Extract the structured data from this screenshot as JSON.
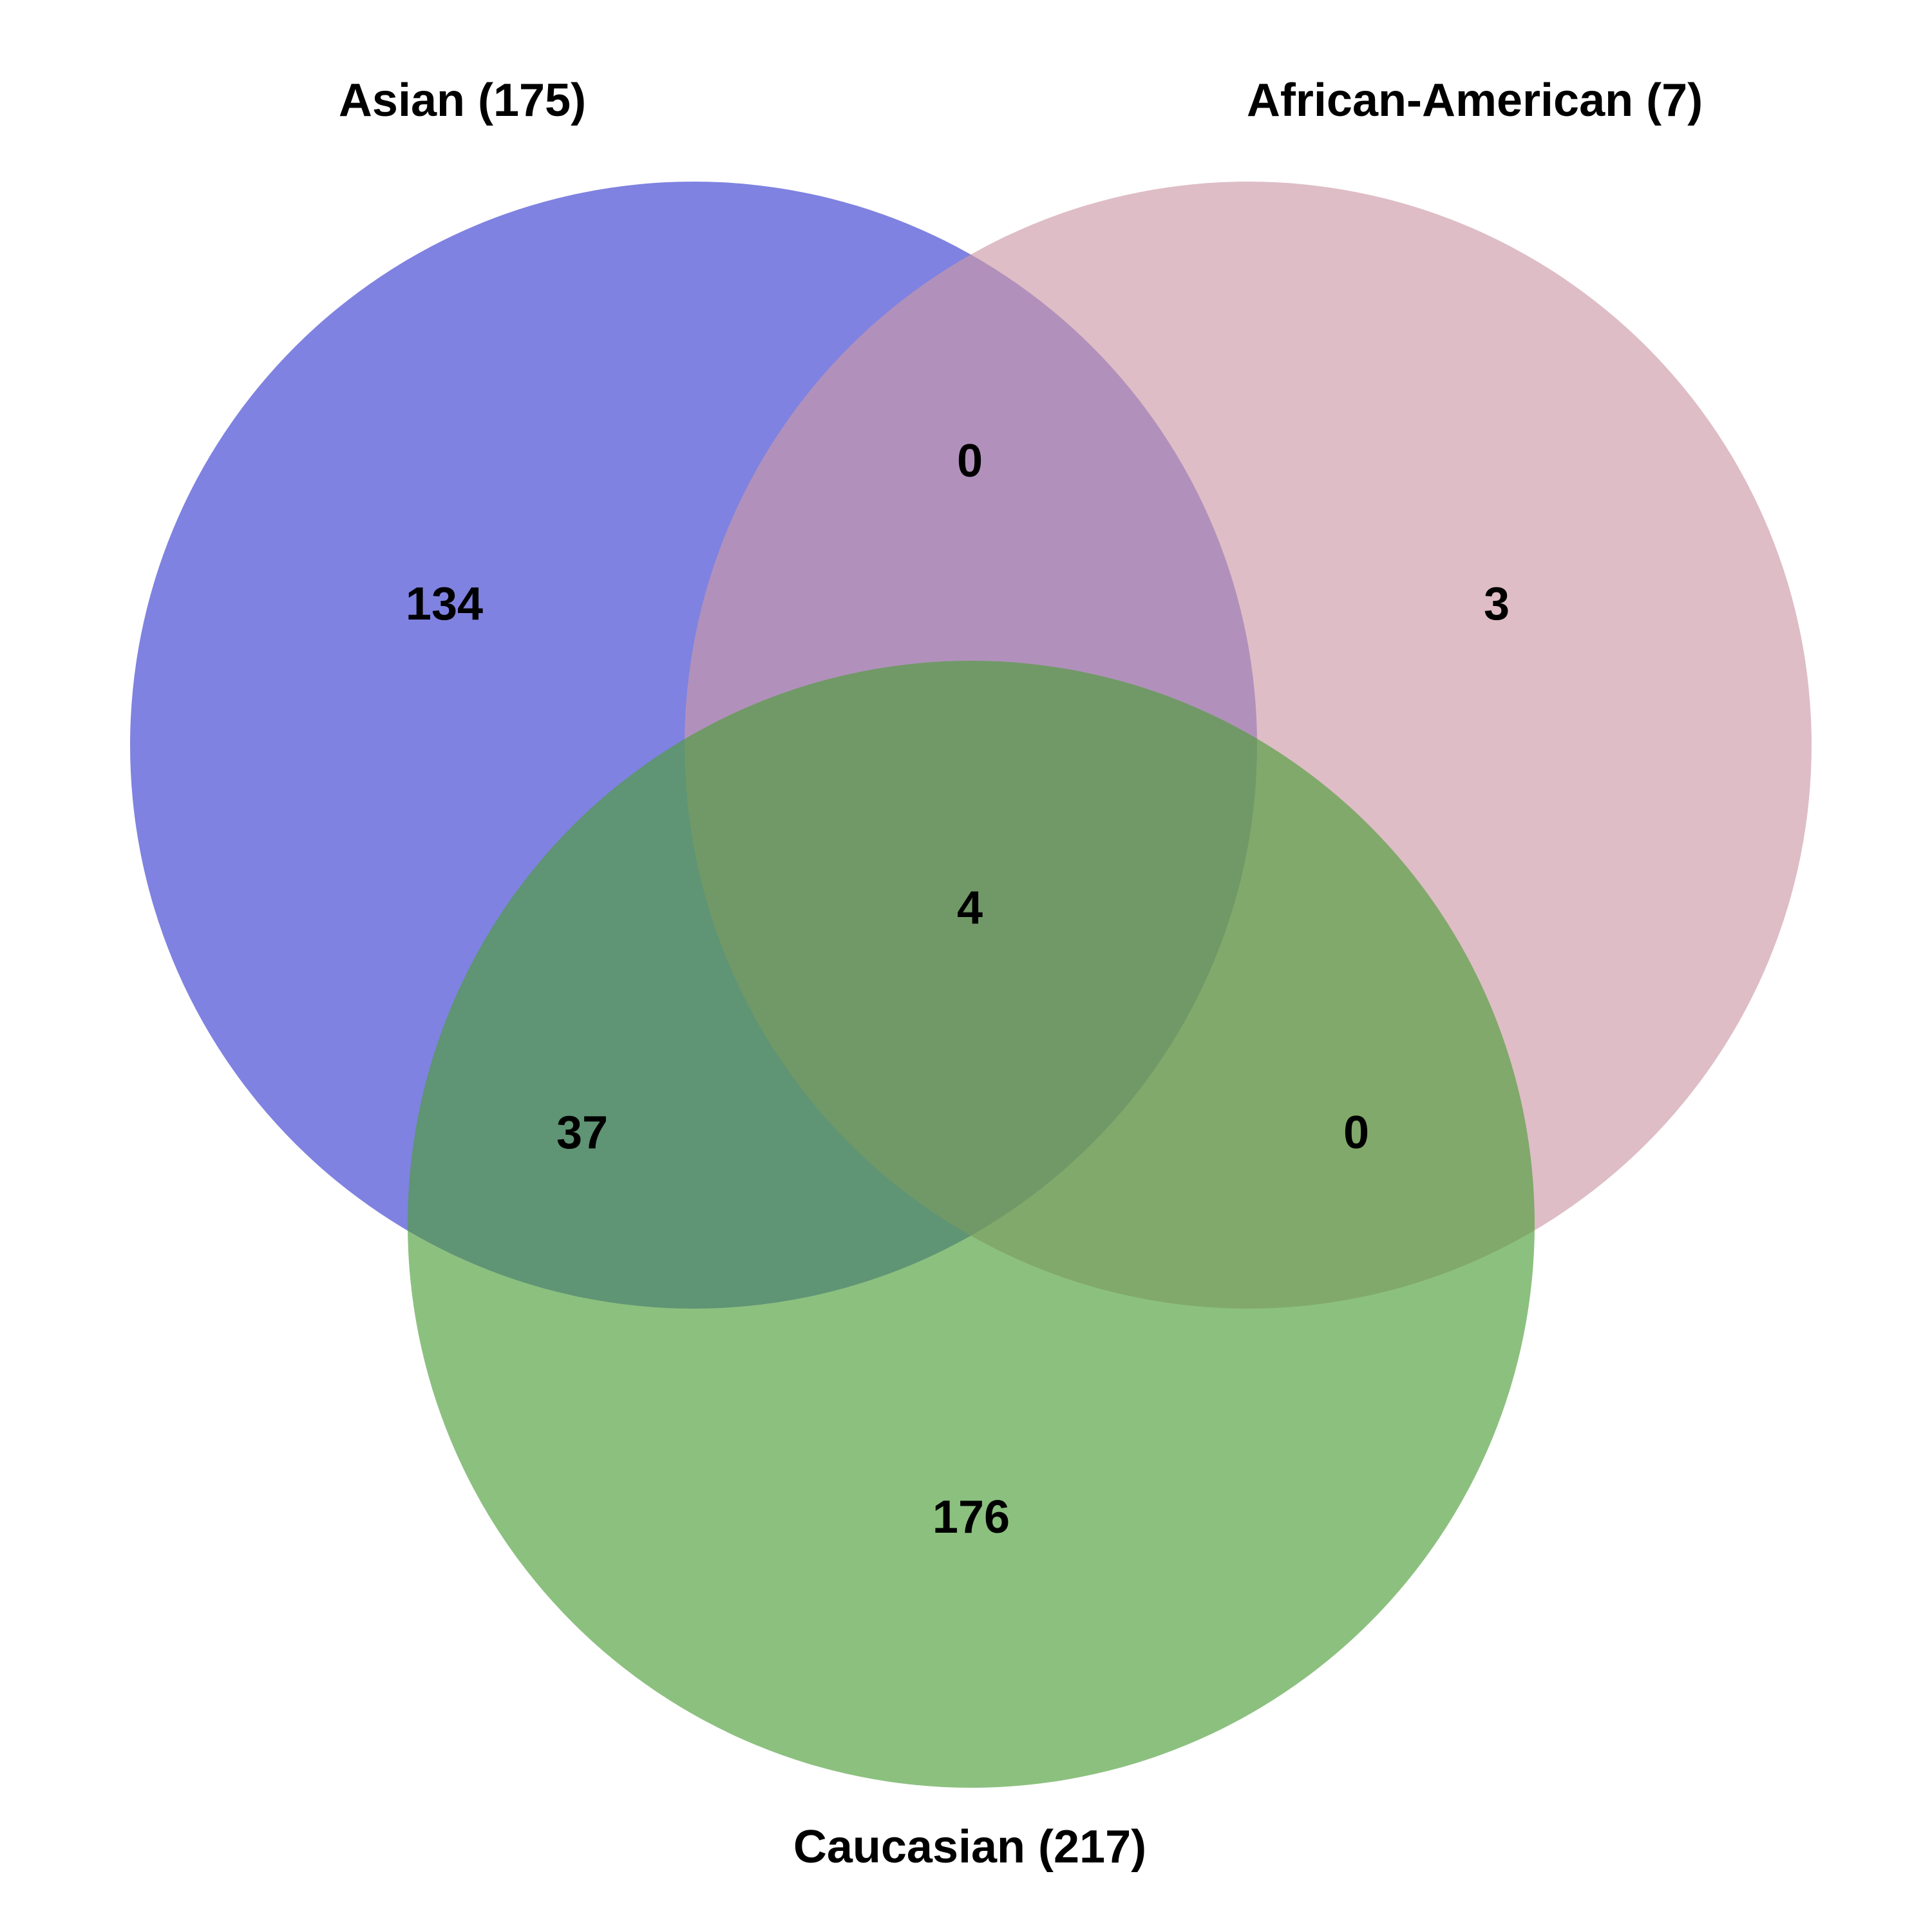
{
  "sets": [
    {
      "key": "asian",
      "label": "Asian (175)",
      "color": "#3b3fd0",
      "opacity": 0.65
    },
    {
      "key": "african_american",
      "label": "African-American (7)",
      "color": "#cc9aa8",
      "opacity": 0.65
    },
    {
      "key": "caucasian",
      "label": "Caucasian (217)",
      "color": "#4e9e3a",
      "opacity": 0.65
    }
  ],
  "regions": {
    "asian_only": "134",
    "african_american_only": "3",
    "caucasian_only": "176",
    "asian_african_american": "0",
    "asian_caucasian": "37",
    "african_american_caucasian": "0",
    "all_three": "4"
  }
}
